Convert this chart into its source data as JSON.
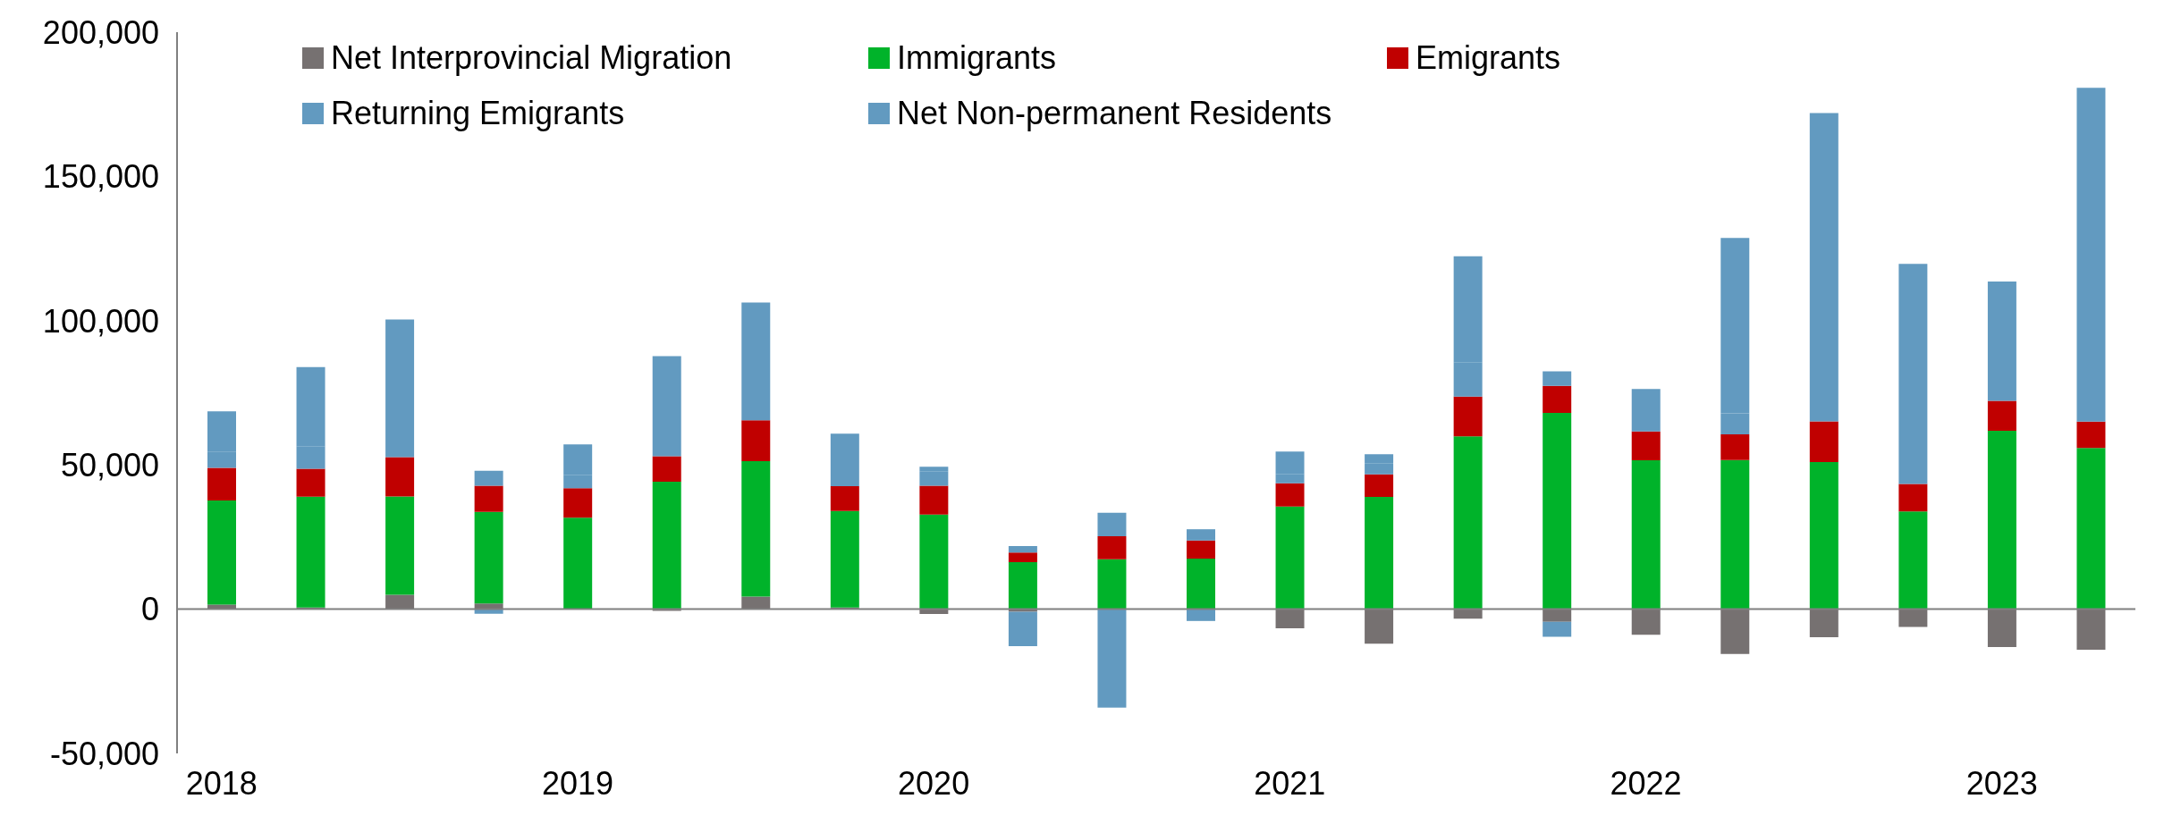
{
  "chart_data": {
    "type": "bar",
    "stacked": true,
    "categories": [
      "2018",
      null,
      null,
      null,
      "2019",
      null,
      null,
      null,
      "2020",
      null,
      null,
      null,
      "2021",
      null,
      null,
      null,
      "2022",
      null,
      null,
      null,
      "2023",
      null
    ],
    "series": [
      {
        "name": "Net Interprovincial Migration",
        "color": "#767171",
        "values": [
          1600,
          600,
          5000,
          2000,
          0,
          -600,
          4400,
          600,
          -1700,
          -900,
          0,
          0,
          -6600,
          -12000,
          -3300,
          -4400,
          -8900,
          -15500,
          -9700,
          -6200,
          -13100,
          -14100
        ]
      },
      {
        "name": "Immigrants",
        "color": "#00b32a",
        "values": [
          36100,
          38400,
          34100,
          31700,
          31700,
          44200,
          46900,
          33400,
          32800,
          16300,
          17300,
          17500,
          35600,
          38900,
          59900,
          68000,
          51600,
          51700,
          51000,
          33900,
          61800,
          55900
        ]
      },
      {
        "name": "Emigrants",
        "color": "#c00000",
        "values": [
          11300,
          9700,
          13600,
          9100,
          10200,
          8800,
          14200,
          8600,
          10000,
          3300,
          8000,
          6300,
          8000,
          7800,
          13800,
          9400,
          10000,
          8900,
          14100,
          9500,
          10400,
          9100
        ]
      },
      {
        "name": "Returning Emigrants",
        "color": "#629ac0",
        "values": [
          5500,
          7800,
          11900,
          5200,
          4700,
          7300,
          7500,
          4400,
          5000,
          2300,
          8100,
          3900,
          3300,
          3900,
          11900,
          5000,
          4900,
          7300,
          11900,
          5100,
          4800,
          7400
        ]
      },
      {
        "name": "Net Non-permanent Residents",
        "color": "#629ac0",
        "values": [
          14100,
          27400,
          35800,
          -1600,
          10500,
          27400,
          33300,
          13800,
          1600,
          -11900,
          -34100,
          -4100,
          7700,
          3100,
          36700,
          -5200,
          9800,
          60800,
          95000,
          71200,
          36600,
          108300
        ]
      }
    ],
    "ylim": [
      -50000,
      200000
    ],
    "yticks": [
      {
        "value": -50000,
        "label": "-50,000"
      },
      0,
      {
        "value": 50000,
        "label": "50,000"
      },
      {
        "value": 100000,
        "label": "100,000"
      },
      {
        "value": 150000,
        "label": "150,000"
      },
      {
        "value": 200000,
        "label": "200,000"
      }
    ],
    "legend": "top"
  }
}
